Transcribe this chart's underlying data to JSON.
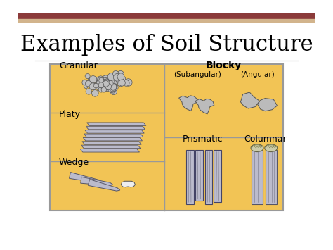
{
  "title": "Examples of Soil Structure",
  "bg_color": "#ffffff",
  "panel_color": "#F2C455",
  "panel_edge_color": "#999999",
  "title_fontsize": 22,
  "title_font": "serif",
  "header_bar_color1": "#8B3A3A",
  "header_bar_color2": "#D2B48C",
  "labels": {
    "granular": "Granular",
    "platy": "Platy",
    "wedge": "Wedge",
    "blocky": "Blocky",
    "subangular": "(Subangular)",
    "angular": "(Angular)",
    "prismatic": "Prismatic",
    "columnar": "Columnar"
  },
  "label_fontsize": 9,
  "sublabel_fontsize": 7.5,
  "gray_fill": "#AAAAAA",
  "gray_edge": "#666666"
}
